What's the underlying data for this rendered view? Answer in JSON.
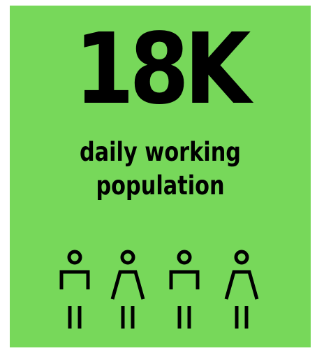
{
  "headline": {
    "value": "18K",
    "line1": "daily working",
    "line2": "population"
  },
  "colors": {
    "background": "#77d85a",
    "ink": "#000000"
  },
  "figures": [
    {
      "icon": "male-figure-icon"
    },
    {
      "icon": "female-figure-icon"
    },
    {
      "icon": "male-figure-icon"
    },
    {
      "icon": "female-figure-icon"
    }
  ]
}
